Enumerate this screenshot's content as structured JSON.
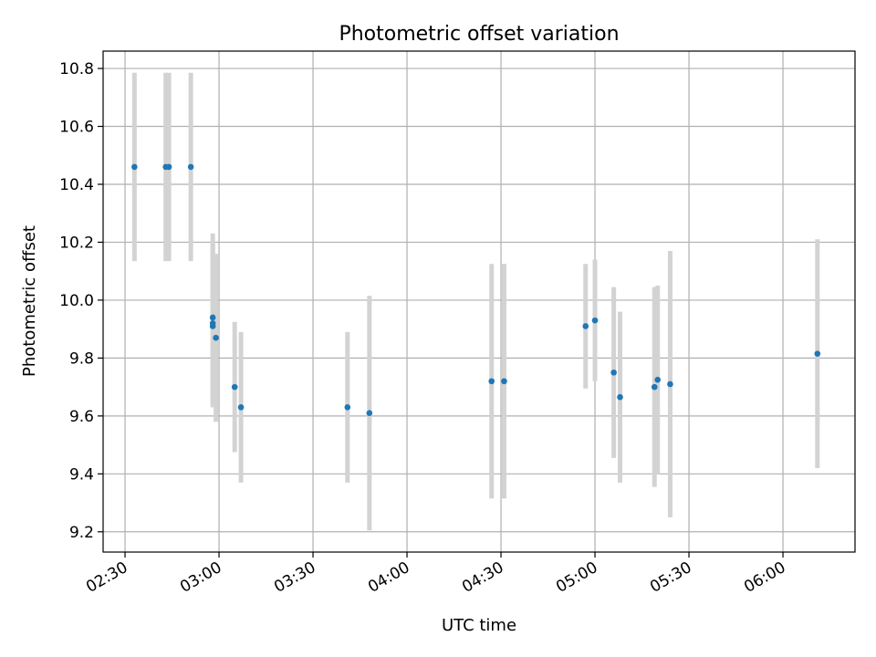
{
  "chart_data": {
    "type": "scatter",
    "title": "Photometric offset variation",
    "xlabel": "UTC time",
    "ylabel": "Photometric offset",
    "x_tick_labels": [
      "02:30",
      "03:00",
      "03:30",
      "04:00",
      "04:30",
      "05:00",
      "05:30",
      "06:00"
    ],
    "y_tick_labels": [
      "9.2",
      "9.4",
      "9.6",
      "9.8",
      "10.0",
      "10.2",
      "10.4",
      "10.6",
      "10.8"
    ],
    "xlim": [
      "02:23",
      "06:23"
    ],
    "ylim": [
      9.13,
      10.86
    ],
    "grid": true,
    "point_color": "#1f77b4",
    "errorbar_color": "#d3d3d3",
    "points": [
      {
        "x": "02:33",
        "y": 10.46,
        "err": 0.325
      },
      {
        "x": "02:43",
        "y": 10.46,
        "err": 0.325
      },
      {
        "x": "02:44",
        "y": 10.46,
        "err": 0.325
      },
      {
        "x": "02:51",
        "y": 10.46,
        "err": 0.325
      },
      {
        "x": "02:58",
        "y": 9.94,
        "err": 0.29
      },
      {
        "x": "02:58",
        "y": 9.91,
        "err": 0.28
      },
      {
        "x": "02:58",
        "y": 9.92,
        "err": 0.28
      },
      {
        "x": "02:59",
        "y": 9.87,
        "err": 0.29
      },
      {
        "x": "03:05",
        "y": 9.7,
        "err": 0.225
      },
      {
        "x": "03:07",
        "y": 9.63,
        "err": 0.26
      },
      {
        "x": "03:41",
        "y": 9.63,
        "err": 0.26
      },
      {
        "x": "03:48",
        "y": 9.61,
        "err": 0.405
      },
      {
        "x": "04:27",
        "y": 9.72,
        "err": 0.405
      },
      {
        "x": "04:31",
        "y": 9.72,
        "err": 0.405
      },
      {
        "x": "04:57",
        "y": 9.91,
        "err": 0.215
      },
      {
        "x": "05:00",
        "y": 9.93,
        "err": 0.21
      },
      {
        "x": "05:06",
        "y": 9.75,
        "err": 0.295
      },
      {
        "x": "05:08",
        "y": 9.665,
        "err": 0.295
      },
      {
        "x": "05:19",
        "y": 9.7,
        "err": 0.345
      },
      {
        "x": "05:20",
        "y": 9.725,
        "err": 0.325
      },
      {
        "x": "05:24",
        "y": 9.71,
        "err": 0.46
      },
      {
        "x": "06:11",
        "y": 9.815,
        "err": 0.395
      }
    ]
  }
}
